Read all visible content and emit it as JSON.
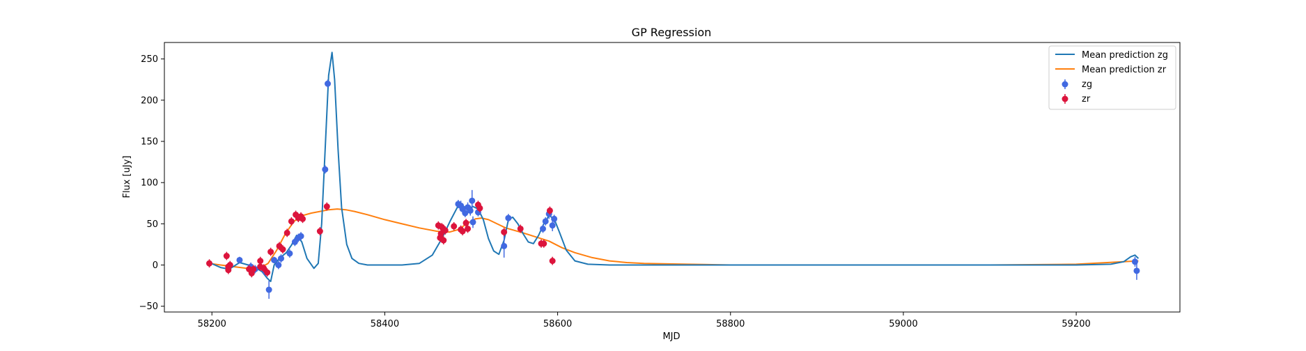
{
  "chart_data": {
    "type": "line",
    "title": "GP Regression",
    "xlabel": "MJD",
    "ylabel": "Flux [uJy]",
    "xlim": [
      58145,
      59320
    ],
    "ylim": [
      -57,
      270
    ],
    "xticks": [
      58200,
      58400,
      58600,
      58800,
      59000,
      59200
    ],
    "yticks": [
      -50,
      0,
      50,
      100,
      150,
      200,
      250
    ],
    "legend_position": "top-right",
    "legend": [
      "Mean prediction zg",
      "Mean prediction zr",
      "zg",
      "zr"
    ],
    "colors": {
      "zg_line": "#1f77b4",
      "zr_line": "#ff7f0e",
      "zg_points": "#4169e1",
      "zr_points": "#dc143c"
    },
    "series": [
      {
        "name": "Mean prediction zg",
        "kind": "line",
        "x": [
          58197,
          58210,
          58220,
          58232,
          58242,
          58250,
          58258,
          58264,
          58268,
          58272,
          58278,
          58286,
          58292,
          58298,
          58304,
          58310,
          58318,
          58323,
          58327,
          58331,
          58335,
          58339,
          58342,
          58346,
          58350,
          58356,
          58362,
          58370,
          58380,
          58400,
          58420,
          58440,
          58455,
          58466,
          58476,
          58484,
          58490,
          58496,
          58502,
          58508,
          58514,
          58520,
          58526,
          58532,
          58538,
          58543,
          58548,
          58554,
          58560,
          58566,
          58572,
          58578,
          58584,
          58590,
          58596,
          58602,
          58610,
          58620,
          58635,
          58660,
          58700,
          58800,
          58900,
          59000,
          59100,
          59200,
          59240,
          59255,
          59263,
          59268,
          59272
        ],
        "y": [
          3,
          -3,
          -5,
          3,
          0,
          -3,
          -8,
          -16,
          -20,
          0,
          8,
          15,
          24,
          36,
          28,
          8,
          -4,
          2,
          50,
          140,
          230,
          258,
          225,
          140,
          70,
          25,
          8,
          2,
          0,
          0,
          0,
          2,
          12,
          32,
          54,
          70,
          72,
          68,
          71,
          68,
          55,
          32,
          17,
          13,
          30,
          55,
          58,
          50,
          38,
          28,
          26,
          36,
          50,
          60,
          56,
          40,
          18,
          5,
          1,
          0,
          0,
          0,
          0,
          0,
          0,
          0,
          1,
          4,
          10,
          12,
          8
        ]
      },
      {
        "name": "Mean prediction zr",
        "kind": "line",
        "x": [
          58197,
          58210,
          58225,
          58240,
          58255,
          58265,
          58275,
          58285,
          58295,
          58305,
          58315,
          58325,
          58335,
          58345,
          58355,
          58365,
          58380,
          58400,
          58420,
          58440,
          58460,
          58475,
          58485,
          58492,
          58498,
          58505,
          58512,
          58520,
          58530,
          58540,
          58550,
          58560,
          58575,
          58590,
          58605,
          58620,
          58640,
          58660,
          58680,
          58700,
          58750,
          58800,
          58900,
          59000,
          59100,
          59200,
          59272
        ],
        "y": [
          2,
          0,
          -2,
          -4,
          -4,
          2,
          18,
          38,
          53,
          60,
          63,
          65,
          67,
          68,
          67,
          65,
          61,
          55,
          50,
          45,
          41,
          40,
          43,
          48,
          52,
          56,
          57,
          55,
          50,
          45,
          42,
          39,
          34,
          29,
          21,
          15,
          9,
          5,
          3,
          2,
          1,
          0,
          0,
          0,
          0,
          1,
          5
        ]
      },
      {
        "name": "zg",
        "kind": "points",
        "x": [
          58232,
          58245,
          58250,
          58262,
          58266,
          58272,
          58277,
          58280,
          58290,
          58296,
          58300,
          58303,
          58331,
          58334,
          58485,
          58488,
          58490,
          58493,
          58496,
          58499,
          58501,
          58502,
          58508,
          58538,
          58543,
          58583,
          58586,
          58590,
          58594,
          58596,
          59268,
          59270
        ],
        "y": [
          6,
          -2,
          -5,
          -8,
          -30,
          6,
          0,
          8,
          14,
          28,
          33,
          35,
          116,
          220,
          74,
          72,
          68,
          63,
          70,
          66,
          78,
          52,
          64,
          23,
          57,
          44,
          53,
          62,
          48,
          56,
          4,
          -7
        ],
        "err": [
          4,
          5,
          5,
          5,
          11,
          4,
          5,
          5,
          5,
          5,
          5,
          5,
          5,
          5,
          5,
          6,
          5,
          5,
          6,
          6,
          13,
          7,
          5,
          14,
          5,
          5,
          5,
          6,
          7,
          5,
          6,
          11
        ]
      },
      {
        "name": "zr",
        "kind": "points",
        "x": [
          58197,
          58217,
          58219,
          58219,
          58221,
          58243,
          58246,
          58248,
          58256,
          58256,
          58260,
          58264,
          58268,
          58278,
          58282,
          58287,
          58292,
          58297,
          58300,
          58303,
          58305,
          58325,
          58333,
          58462,
          58464,
          58465,
          58466,
          58468,
          58470,
          58480,
          58488,
          58490,
          58494,
          58496,
          58508,
          58510,
          58538,
          58557,
          58581,
          58584,
          58591,
          58594
        ],
        "y": [
          2,
          11,
          -2,
          -6,
          0,
          -5,
          -10,
          -5,
          -2,
          5,
          -4,
          -9,
          16,
          23,
          19,
          39,
          53,
          61,
          57,
          59,
          56,
          41,
          71,
          48,
          33,
          38,
          46,
          30,
          42,
          47,
          43,
          41,
          51,
          44,
          73,
          69,
          40,
          44,
          26,
          26,
          66,
          5
        ]
      }
    ]
  }
}
